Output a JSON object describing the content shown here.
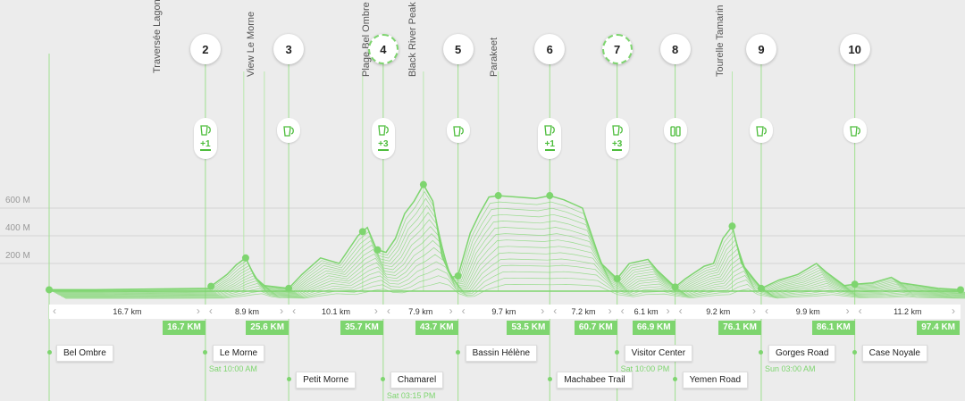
{
  "chart_data": {
    "type": "area",
    "ylabel": "",
    "y_ticks": [
      "200 M",
      "400 M",
      "600 M"
    ],
    "x_axis_km": [
      0,
      97.4
    ],
    "y_range_m": [
      0,
      800
    ],
    "peak_labels": [
      "Traversée Lagon",
      "View Le Morne",
      "Plage Bel Ombre",
      "Black River Peak",
      "Parakeet",
      "Tourelle Tamarin"
    ],
    "checkpoints": [
      {
        "label": "2",
        "km": 16.7
      },
      {
        "label": "3",
        "km": 25.6
      },
      {
        "label": "4",
        "km": 35.7,
        "highlight": true
      },
      {
        "label": "5",
        "km": 43.7
      },
      {
        "label": "6",
        "km": 53.5
      },
      {
        "label": "7",
        "km": 60.7,
        "highlight": true
      },
      {
        "label": "8",
        "km": 66.9
      },
      {
        "label": "9",
        "km": 76.1
      },
      {
        "label": "10",
        "km": 86.1
      }
    ],
    "services": [
      {
        "extra": "+1",
        "km": 16.7
      },
      {
        "extra": "",
        "km": 25.6
      },
      {
        "extra": "+3",
        "km": 35.7
      },
      {
        "extra": "",
        "km": 43.7
      },
      {
        "extra": "+1",
        "km": 53.5
      },
      {
        "extra": "+3",
        "km": 60.7
      },
      {
        "extra": "",
        "km": 66.9,
        "icon": "bottles"
      },
      {
        "extra": "",
        "km": 76.1
      },
      {
        "extra": "",
        "km": 86.1
      }
    ],
    "segments": [
      {
        "distance": "16.7 km",
        "cumulative": "16.7 KM"
      },
      {
        "distance": "8.9 km",
        "cumulative": "25.6 KM"
      },
      {
        "distance": "10.1 km",
        "cumulative": "35.7 KM"
      },
      {
        "distance": "7.9 km",
        "cumulative": "43.7 KM"
      },
      {
        "distance": "9.7 km",
        "cumulative": "53.5 KM"
      },
      {
        "distance": "7.2 km",
        "cumulative": "60.7 KM"
      },
      {
        "distance": "6.1 km",
        "cumulative": "66.9 KM"
      },
      {
        "distance": "9.2 km",
        "cumulative": "76.1 KM"
      },
      {
        "distance": "9.9 km",
        "cumulative": "86.1 KM"
      },
      {
        "distance": "11.2 km",
        "cumulative": "97.4 KM"
      }
    ],
    "towns": [
      {
        "name": "Bel Ombre",
        "time": ""
      },
      {
        "name": "Le Morne",
        "time": "Sat 10:00 AM"
      },
      {
        "name": "Petit Morne",
        "time": ""
      },
      {
        "name": "Chamarel",
        "time": "Sat 03:15 PM"
      },
      {
        "name": "Bassin Hélène",
        "time": ""
      },
      {
        "name": "Machabee Trail",
        "time": ""
      },
      {
        "name": "Visitor Center",
        "time": "Sat 10:00 PM"
      },
      {
        "name": "Yemen Road",
        "time": ""
      },
      {
        "name": "Gorges Road",
        "time": "Sun 03:00 AM"
      },
      {
        "name": "Case Noyale",
        "time": ""
      }
    ],
    "profile": [
      [
        0,
        10
      ],
      [
        5,
        10
      ],
      [
        10,
        15
      ],
      [
        14,
        18
      ],
      [
        17,
        20
      ],
      [
        18,
        70
      ],
      [
        19,
        120
      ],
      [
        20,
        190
      ],
      [
        21,
        240
      ],
      [
        22,
        100
      ],
      [
        23,
        40
      ],
      [
        25.6,
        20
      ],
      [
        27,
        120
      ],
      [
        29,
        240
      ],
      [
        31,
        200
      ],
      [
        33,
        400
      ],
      [
        34,
        460
      ],
      [
        35,
        300
      ],
      [
        36,
        280
      ],
      [
        37,
        380
      ],
      [
        38,
        560
      ],
      [
        39,
        650
      ],
      [
        40,
        770
      ],
      [
        41,
        650
      ],
      [
        42,
        250
      ],
      [
        43,
        100
      ],
      [
        43.7,
        110
      ],
      [
        45,
        420
      ],
      [
        46,
        560
      ],
      [
        47,
        680
      ],
      [
        48,
        690
      ],
      [
        50,
        680
      ],
      [
        52,
        670
      ],
      [
        53.5,
        690
      ],
      [
        55,
        660
      ],
      [
        57,
        600
      ],
      [
        58,
        400
      ],
      [
        59,
        200
      ],
      [
        60.7,
        90
      ],
      [
        62,
        200
      ],
      [
        64,
        230
      ],
      [
        65,
        150
      ],
      [
        66.9,
        30
      ],
      [
        68,
        90
      ],
      [
        70,
        180
      ],
      [
        71,
        200
      ],
      [
        72,
        380
      ],
      [
        73,
        470
      ],
      [
        74,
        200
      ],
      [
        76.1,
        20
      ],
      [
        78,
        80
      ],
      [
        80,
        120
      ],
      [
        82,
        200
      ],
      [
        83,
        140
      ],
      [
        85,
        40
      ],
      [
        86.1,
        50
      ],
      [
        88,
        60
      ],
      [
        90,
        100
      ],
      [
        91,
        60
      ],
      [
        93,
        40
      ],
      [
        95,
        20
      ],
      [
        97.4,
        10
      ]
    ],
    "colors": {
      "line": "#7ed56f",
      "accent": "#4dbd3c",
      "box": "#7ed56f"
    }
  }
}
